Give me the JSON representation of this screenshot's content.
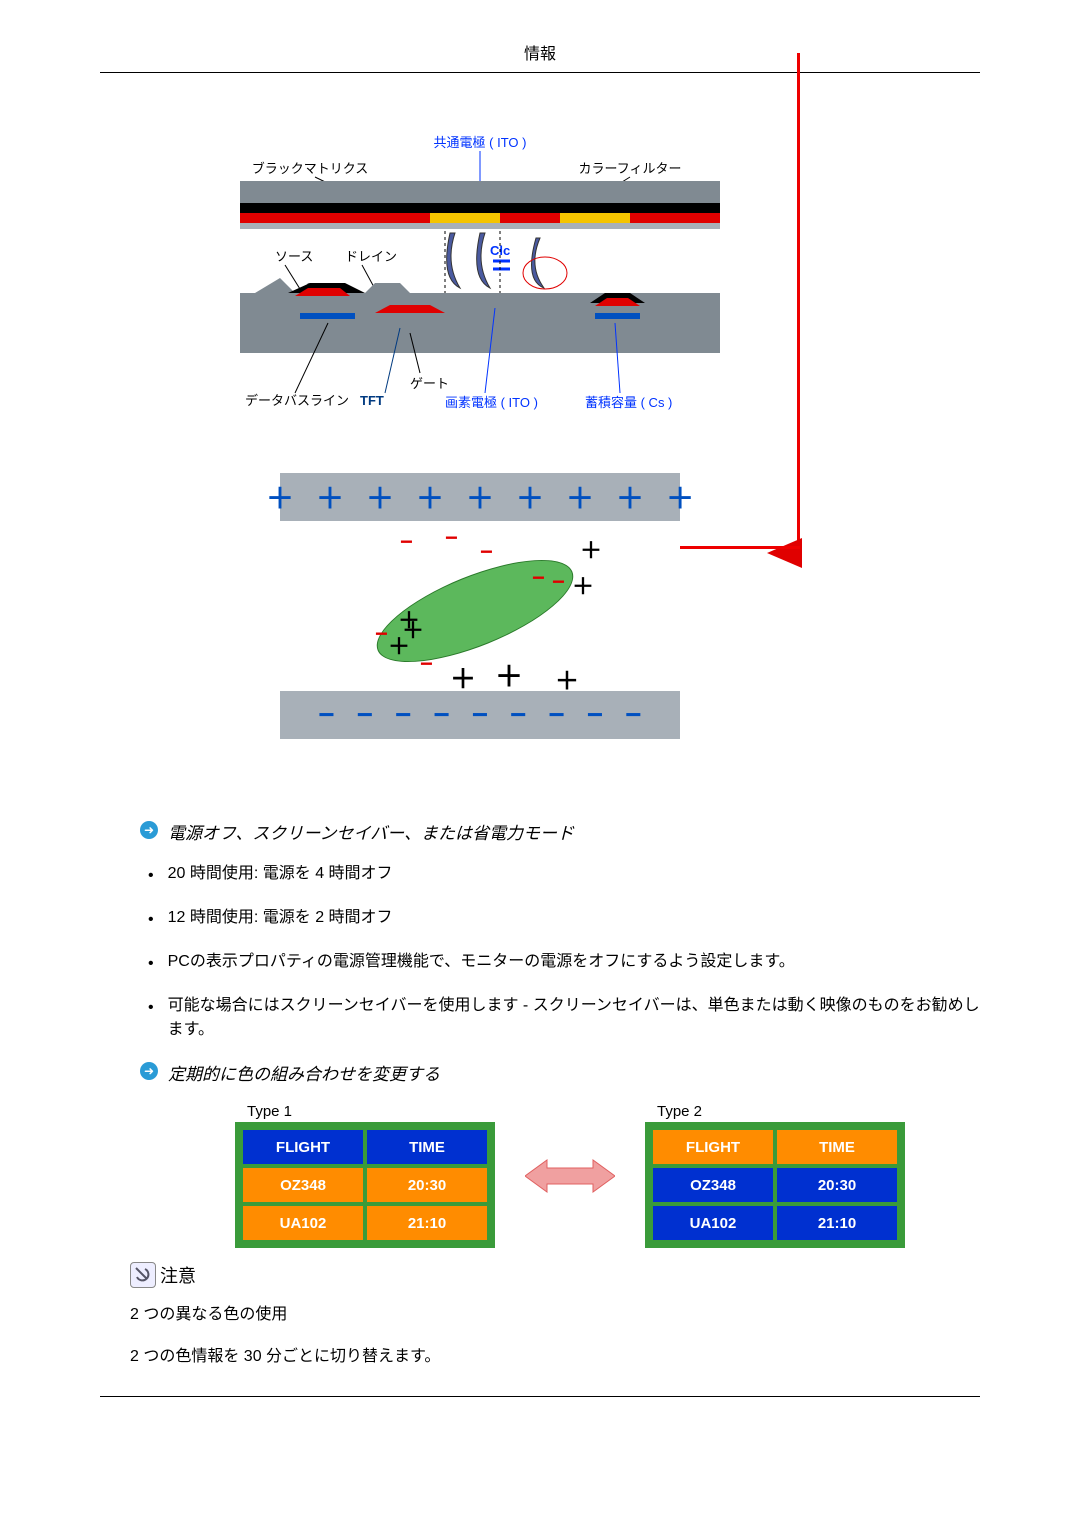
{
  "header": {
    "title": "情報"
  },
  "tft_diagram": {
    "labels": {
      "common_electrode": "共通電極 ( ITO )",
      "black_matrix": "ブラックマトリクス",
      "color_filter": "カラーフィルター",
      "source": "ソース",
      "drain": "ドレイン",
      "clc": "Clc",
      "gate": "ゲート",
      "databus": "データバスライン",
      "tft": "TFT",
      "pixel_electrode": "画素電極 ( ITO )",
      "storage_cap": "蓄積容量 ( Cs )"
    },
    "colors": {
      "gray": "#808a92",
      "black": "#000000",
      "red": "#e00000",
      "yellow": "#f5c400",
      "blue": "#0050c0",
      "label_blue": "#0033ff",
      "label_dark": "#003a80"
    }
  },
  "lc_diagram": {
    "bar_color": "#a8b0b8",
    "plus_color": "#0050c0",
    "green": "#5cb85c",
    "charge_red": "#e00000",
    "charge_black": "#000000",
    "top_row": [
      "+",
      "+",
      "+",
      "+",
      "+",
      "+",
      "+",
      "+",
      "+"
    ],
    "bottom_row": [
      "−",
      "−",
      "−",
      "−",
      "−",
      "−",
      "−",
      "−",
      "−"
    ]
  },
  "sections": {
    "power_modes_title": "電源オフ、スクリーンセイバー、または省電力モード",
    "bullets": [
      "20 時間使用:  電源を 4 時間オフ",
      "12 時間使用:  電源を 2 時間オフ",
      "PCの表示プロパティの電源管理機能で、モニターの電源をオフにするよう設定します。",
      "可能な場合にはスクリーンセイバーを使用します  -  スクリーンセイバーは、単色または動く映像のものをお勧めします。"
    ],
    "color_change_title": "定期的に色の組み合わせを変更する",
    "type1_label": "Type 1",
    "type2_label": "Type 2",
    "tables": {
      "border_color": "#3a9b3a",
      "type1": {
        "header": [
          {
            "text": "FLIGHT",
            "bg": "#0030d0"
          },
          {
            "text": "TIME",
            "bg": "#0030d0"
          }
        ],
        "rows": [
          [
            {
              "text": "OZ348",
              "bg": "#ff8c00"
            },
            {
              "text": "20:30",
              "bg": "#ff8c00"
            }
          ],
          [
            {
              "text": "UA102",
              "bg": "#ff8c00"
            },
            {
              "text": "21:10",
              "bg": "#ff8c00"
            }
          ]
        ]
      },
      "type2": {
        "header": [
          {
            "text": "FLIGHT",
            "bg": "#ff8c00"
          },
          {
            "text": "TIME",
            "bg": "#ff8c00"
          }
        ],
        "rows": [
          [
            {
              "text": "OZ348",
              "bg": "#0030d0"
            },
            {
              "text": "20:30",
              "bg": "#0030d0"
            }
          ],
          [
            {
              "text": "UA102",
              "bg": "#0030d0"
            },
            {
              "text": "21:10",
              "bg": "#0030d0"
            }
          ]
        ]
      }
    },
    "notice_label": "注意",
    "notice_lines": [
      "2 つの異なる色の使用",
      "2 つの色情報を 30 分ごとに切り替えます。"
    ]
  }
}
